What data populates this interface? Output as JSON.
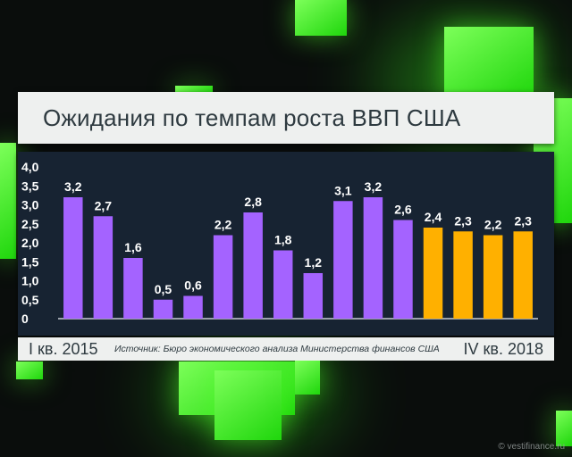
{
  "title": "Ожидания по темпам роста ВВП США",
  "footer": {
    "start_label": "I кв. 2015",
    "end_label": "IV кв. 2018",
    "source": "Источник: Бюро экономического анализа Министерства финансов США"
  },
  "watermark": "© vestifinance.ru",
  "colors": {
    "actual": "#a463ff",
    "forecast": "#ffb000"
  },
  "chart_data": {
    "type": "bar",
    "title": "Ожидания по темпам роста ВВП США",
    "xlabel": "",
    "ylabel": "",
    "ylim": [
      0,
      4.0
    ],
    "y_ticks": [
      "0",
      "0,5",
      "1,0",
      "1,5",
      "2,0",
      "2,5",
      "3,0",
      "3,5",
      "4,0"
    ],
    "values": [
      3.2,
      2.7,
      1.6,
      0.5,
      0.6,
      2.2,
      2.8,
      1.8,
      1.2,
      3.1,
      3.2,
      2.6,
      2.4,
      2.3,
      2.2,
      2.3
    ],
    "value_labels": [
      "3,2",
      "2,7",
      "1,6",
      "0,5",
      "0,6",
      "2,2",
      "2,8",
      "1,8",
      "1,2",
      "3,1",
      "3,2",
      "2,6",
      "2,4",
      "2,3",
      "2,2",
      "2,3"
    ],
    "bar_kinds": [
      "actual",
      "actual",
      "actual",
      "actual",
      "actual",
      "actual",
      "actual",
      "actual",
      "actual",
      "actual",
      "actual",
      "actual",
      "forecast",
      "forecast",
      "forecast",
      "forecast"
    ],
    "grid": false,
    "legend": "none"
  }
}
